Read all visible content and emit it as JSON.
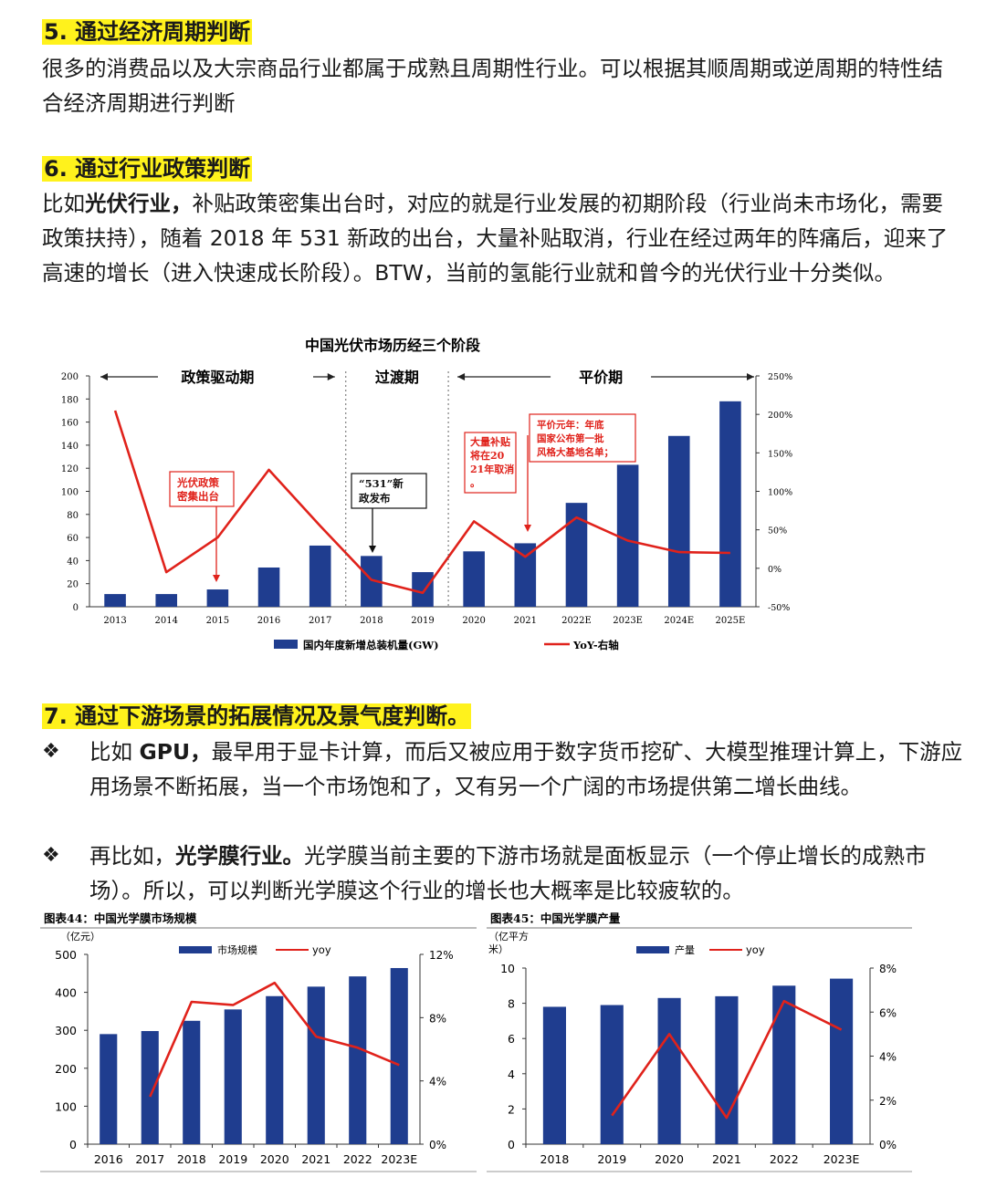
{
  "sec5": {
    "title": "5. 通过经济周期判断",
    "body": "很多的消费品以及大宗商品行业都属于成熟且周期性行业。可以根据其顺周期或逆周期的特性结合经济周期进行判断"
  },
  "sec6": {
    "title": "6. 通过行业政策判断",
    "lead": "比如",
    "bold": "光伏行业，",
    "body": "补贴政策密集出台时，对应的就是行业发展的初期阶段（行业尚未市场化，需要政策扶持），随着 2018 年 531 新政的出台，大量补贴取消，行业在经过两年的阵痛后，迎来了高速的增长（进入快速成长阶段）。BTW，当前的氢能行业就和曾今的光伏行业十分类似。"
  },
  "sec7": {
    "title": "7. 通过下游场景的拓展情况及景气度判断。",
    "bullet_mark": "❖",
    "b1_lead": "比如 ",
    "b1_bold": "GPU，",
    "b1_body": "最早用于显卡计算，而后又被应用于数字货币挖矿、大模型推理计算上，下游应用场景不断拓展，当一个市场饱和了，又有另一个广阔的市场提供第二增长曲线。",
    "b2_lead": "再比如，",
    "b2_bold": "光学膜行业。",
    "b2_body": "光学膜当前主要的下游市场就是面板显示（一个停止增长的成熟市场）。所以，可以判断光学膜这个行业的增长也大概率是比较疲软的。"
  },
  "colors": {
    "bar": "#1f3d8f",
    "line": "#e0221b",
    "highlight": "#fff21c",
    "annot": "#e0221b"
  },
  "chart_data": [
    {
      "type": "bar",
      "title": "中国光伏市场历经三个阶段",
      "categories": [
        "2013",
        "2014",
        "2015",
        "2016",
        "2017",
        "2018",
        "2019",
        "2020",
        "2021",
        "2022E",
        "2023E",
        "2024E",
        "2025E"
      ],
      "ylim": [
        0,
        200
      ],
      "yticks": [
        "200",
        "180",
        "160",
        "140",
        "120",
        "100",
        "80",
        "60",
        "40",
        "20",
        "0"
      ],
      "y2lim": [
        -50,
        250
      ],
      "y2ticks": [
        "250%",
        "200%",
        "150%",
        "100%",
        "50%",
        "0%",
        "-50%"
      ],
      "series": [
        {
          "name": "国内年度新增总装机量(GW)",
          "type": "bar",
          "values": [
            11,
            11,
            15,
            34,
            53,
            44,
            30,
            48,
            55,
            90,
            123,
            148,
            178
          ]
        },
        {
          "name": "YoY-右轴",
          "type": "line",
          "axis": "right",
          "values": [
            205,
            -5,
            40,
            128,
            55,
            -15,
            -32,
            61,
            15,
            66,
            36,
            21,
            20
          ]
        }
      ],
      "phases": [
        "政策驱动期",
        "过渡期",
        "平价期"
      ],
      "annotations": [
        "光伏政策密集出台",
        "“531”新政发布",
        "大量补贴将在2021年取消。",
        "平价元年：年底国家公布第一批风格大基地名单；"
      ]
    },
    {
      "type": "bar",
      "title": "图表44：中国光学膜市场规模",
      "ylabel": "（亿元）",
      "categories": [
        "2016",
        "2017",
        "2018",
        "2019",
        "2020",
        "2021",
        "2022",
        "2023E"
      ],
      "ylim": [
        0,
        500
      ],
      "yticks": [
        "500",
        "400",
        "300",
        "200",
        "100",
        "0"
      ],
      "y2lim": [
        0,
        12
      ],
      "y2ticks": [
        "12%",
        "8%",
        "4%",
        "0%"
      ],
      "series": [
        {
          "name": "市场规模",
          "type": "bar",
          "values": [
            290,
            298,
            325,
            355,
            390,
            415,
            442,
            464
          ]
        },
        {
          "name": "yoy",
          "type": "line",
          "axis": "right",
          "values": [
            null,
            3.0,
            9.0,
            8.8,
            10.2,
            6.8,
            6.1,
            5.0
          ]
        }
      ]
    },
    {
      "type": "bar",
      "title": "图表45：中国光学膜产量",
      "ylabel": "（亿平方米）",
      "categories": [
        "2018",
        "2019",
        "2020",
        "2021",
        "2022",
        "2023E"
      ],
      "ylim": [
        0,
        10
      ],
      "yticks": [
        "10",
        "8",
        "6",
        "4",
        "2",
        "0"
      ],
      "y2lim": [
        0,
        8
      ],
      "y2ticks": [
        "8%",
        "6%",
        "4%",
        "2%",
        "0%"
      ],
      "series": [
        {
          "name": "产量",
          "type": "bar",
          "values": [
            7.8,
            7.9,
            8.3,
            8.4,
            9.0,
            9.4
          ]
        },
        {
          "name": "yoy",
          "type": "line",
          "axis": "right",
          "values": [
            null,
            1.3,
            5.0,
            1.2,
            6.5,
            5.2
          ]
        }
      ]
    }
  ]
}
